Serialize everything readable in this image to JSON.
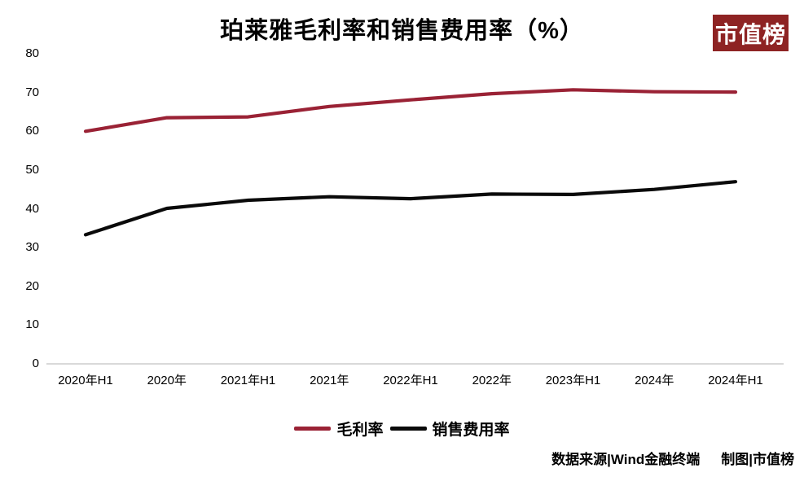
{
  "header": {
    "title": "珀莱雅毛利率和销售费用率（%）"
  },
  "logo": {
    "text": "市值榜",
    "bg_color": "#8e2323",
    "text_color": "#ffffff"
  },
  "footer": {
    "source": "数据来源|Wind金融终端",
    "credit": "制图|市值榜"
  },
  "chart_data": {
    "type": "line",
    "title": "珀莱雅毛利率和销售费用率（%）",
    "categories": [
      "2020年H1",
      "2020年",
      "2021年H1",
      "2021年",
      "2022年H1",
      "2022年",
      "2023年H1",
      "2024年",
      "2024年H1"
    ],
    "series": [
      {
        "key": "gross-margin",
        "name": "毛利率",
        "color": "#9a2235",
        "values": [
          60.0,
          63.5,
          63.7,
          66.4,
          68.1,
          69.7,
          70.7,
          70.2,
          70.1
        ]
      },
      {
        "key": "selling-expense-ratio",
        "name": "销售费用率",
        "color": "#0a0a0a",
        "values": [
          33.3,
          40.1,
          42.2,
          43.1,
          42.6,
          43.8,
          43.7,
          45.0,
          47.0
        ]
      }
    ],
    "xlabel": "",
    "ylabel": "",
    "ylim": [
      0,
      80
    ],
    "yticks": [
      0,
      10,
      20,
      30,
      40,
      50,
      60,
      70,
      80
    ],
    "grid": false,
    "legend_position": "bottom",
    "axis_line_color": "#d9d9d9"
  }
}
